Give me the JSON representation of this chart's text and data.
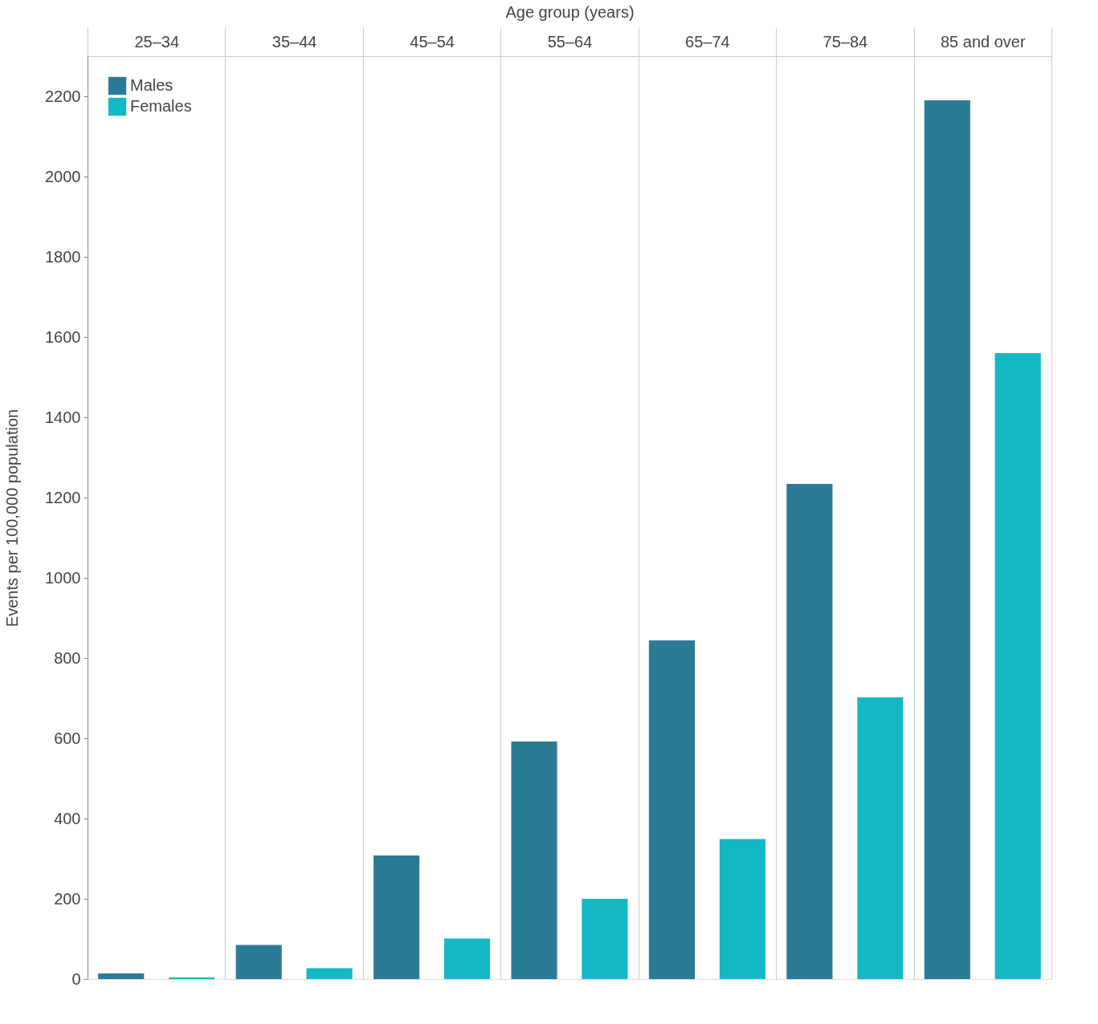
{
  "chart_data": {
    "type": "bar",
    "xlabel": "Age group (years)",
    "ylabel": "Events per 100,000 population",
    "categories": [
      "25–34",
      "35–44",
      "45–54",
      "55–64",
      "65–74",
      "75–84",
      "85 and over"
    ],
    "series": [
      {
        "name": "Males",
        "color": "#2c7b96",
        "values": [
          14,
          85,
          308,
          592,
          844,
          1234,
          2190
        ]
      },
      {
        "name": "Females",
        "color": "#14b8c4",
        "values": [
          4,
          27,
          101,
          200,
          349,
          702,
          1560
        ]
      }
    ],
    "ylim": [
      0,
      2300
    ],
    "yticks": [
      0,
      200,
      400,
      600,
      800,
      1000,
      1200,
      1400,
      1600,
      1800,
      2000,
      2200
    ],
    "grid": "x",
    "legend": "top left"
  }
}
